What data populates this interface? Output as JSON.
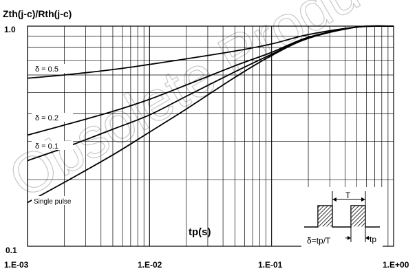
{
  "watermark": "Obsolete Product",
  "chart_data": {
    "type": "line",
    "title": "",
    "ylabel": "Zth(j-c)/Rth(j-c)",
    "xlabel": "tp(s)",
    "x_scale": "log",
    "y_scale": "log",
    "xlim": [
      0.001,
      1.0
    ],
    "ylim": [
      0.1,
      1.0
    ],
    "grid": true,
    "x_tick_labels": [
      "1.E-03",
      "1.E-02",
      "1.E-01",
      "1.E+00"
    ],
    "y_tick_labels": [
      "0.1",
      "1.0"
    ],
    "series": [
      {
        "name": "δ = 0.5",
        "x": [
          0.001,
          0.002,
          0.005,
          0.01,
          0.02,
          0.05,
          0.1,
          0.2,
          0.5,
          1.0
        ],
        "y": [
          0.58,
          0.6,
          0.635,
          0.67,
          0.71,
          0.77,
          0.83,
          0.915,
          0.99,
          1.0
        ]
      },
      {
        "name": "δ = 0.2",
        "x": [
          0.001,
          0.002,
          0.005,
          0.01,
          0.02,
          0.05,
          0.1,
          0.2,
          0.5,
          1.0
        ],
        "y": [
          0.32,
          0.355,
          0.41,
          0.465,
          0.54,
          0.66,
          0.76,
          0.89,
          0.99,
          1.0
        ]
      },
      {
        "name": "δ = 0.1",
        "x": [
          0.001,
          0.002,
          0.005,
          0.01,
          0.02,
          0.05,
          0.1,
          0.2,
          0.5,
          1.0
        ],
        "y": [
          0.245,
          0.28,
          0.34,
          0.395,
          0.48,
          0.62,
          0.745,
          0.885,
          0.99,
          1.0
        ]
      },
      {
        "name": "Single pulse",
        "x": [
          0.001,
          0.002,
          0.005,
          0.01,
          0.02,
          0.05,
          0.1,
          0.2,
          0.5,
          1.0
        ],
        "y": [
          0.158,
          0.195,
          0.26,
          0.33,
          0.42,
          0.585,
          0.735,
          0.88,
          0.99,
          1.0
        ]
      }
    ],
    "inset": {
      "period_label": "T",
      "pulse_label": "tp",
      "duty_label": "δ=tp/T"
    }
  }
}
